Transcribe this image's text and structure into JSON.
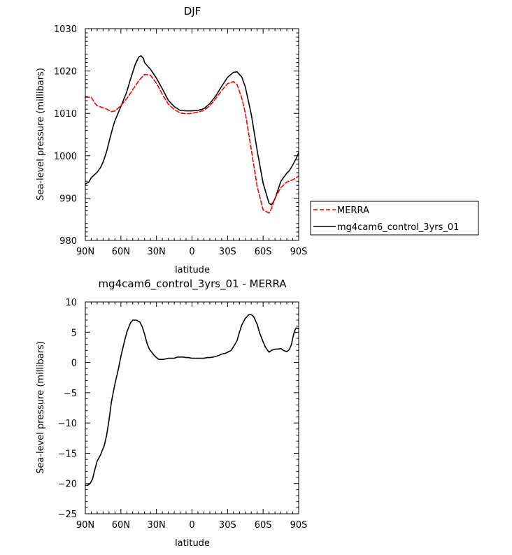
{
  "chart_data": [
    {
      "type": "line",
      "title": "DJF",
      "xlabel": "latitude",
      "ylabel": "Sea-level pressure (millibars)",
      "xlim": [
        90,
        -90
      ],
      "ylim": [
        980,
        1030
      ],
      "x_ticks": [
        90,
        60,
        30,
        0,
        -30,
        -60,
        -90
      ],
      "x_tick_labels": [
        "90N",
        "60N",
        "30N",
        "0",
        "30S",
        "60S",
        "90S"
      ],
      "y_ticks": [
        980,
        990,
        1000,
        1010,
        1020,
        1030
      ],
      "legend": {
        "placement": "right"
      },
      "series": [
        {
          "name": "MERRA",
          "color": "#ff0000",
          "dash": "dashed",
          "x": [
            90,
            85,
            82,
            80,
            77,
            72,
            68,
            65,
            60,
            55,
            50,
            45,
            40,
            35,
            30,
            25,
            20,
            15,
            10,
            5,
            0,
            -5,
            -10,
            -15,
            -20,
            -25,
            -30,
            -35,
            -38,
            -42,
            -45,
            -50,
            -55,
            -60,
            -65,
            -67,
            -70,
            -75,
            -80,
            -85,
            -90
          ],
          "y": [
            1013.8,
            1013.8,
            1012.4,
            1011.8,
            1011.5,
            1011.0,
            1010.4,
            1010.6,
            1011.8,
            1013.5,
            1015.6,
            1017.7,
            1019.2,
            1019.0,
            1017.1,
            1014.5,
            1012.2,
            1010.9,
            1010.1,
            1009.9,
            1010.0,
            1010.3,
            1010.7,
            1011.8,
            1013.5,
            1015.4,
            1017.0,
            1017.5,
            1016.8,
            1013.6,
            1010.0,
            1001.5,
            992.7,
            987.2,
            986.5,
            987.5,
            990.0,
            992.5,
            993.8,
            994.3,
            995.2
          ]
        },
        {
          "name": "mg4cam6_control_3yrs_01",
          "color": "#000000",
          "dash": "solid",
          "x": [
            90,
            87,
            85,
            82,
            80,
            77,
            75,
            72,
            70,
            67,
            65,
            60,
            55,
            52,
            48,
            45,
            43,
            41,
            40,
            37,
            35,
            30,
            25,
            20,
            15,
            10,
            5,
            0,
            -5,
            -10,
            -15,
            -20,
            -25,
            -30,
            -35,
            -38,
            -42,
            -45,
            -50,
            -55,
            -60,
            -65,
            -67,
            -70,
            -75,
            -80,
            -82,
            -85,
            -88,
            -90
          ],
          "y": [
            993.3,
            993.8,
            994.8,
            995.6,
            996.1,
            997.3,
            998.5,
            1001.0,
            1003.3,
            1006.5,
            1008.3,
            1011.6,
            1015.1,
            1018.0,
            1021.5,
            1023.3,
            1023.6,
            1023.0,
            1022.0,
            1021.0,
            1020.4,
            1018.3,
            1015.8,
            1013.1,
            1011.6,
            1010.7,
            1010.6,
            1010.6,
            1010.7,
            1011.1,
            1012.3,
            1014.1,
            1016.4,
            1018.5,
            1019.7,
            1019.8,
            1018.6,
            1016.2,
            1009.8,
            1001.2,
            993.5,
            988.8,
            988.4,
            989.8,
            994.0,
            995.9,
            996.4,
            997.8,
            999.4,
            1000.7
          ]
        }
      ]
    },
    {
      "type": "line",
      "title": "mg4cam6_control_3yrs_01 - MERRA",
      "xlabel": "latitude",
      "ylabel": "Sea-level pressure (millibars)",
      "xlim": [
        90,
        -90
      ],
      "ylim": [
        -25,
        10
      ],
      "x_ticks": [
        90,
        60,
        30,
        0,
        -30,
        -60,
        -90
      ],
      "x_tick_labels": [
        "90N",
        "60N",
        "30N",
        "0",
        "30S",
        "60S",
        "90S"
      ],
      "y_ticks": [
        -25,
        -20,
        -15,
        -10,
        -5,
        0,
        5,
        10
      ],
      "series": [
        {
          "color": "#000000",
          "dash": "solid",
          "x": [
            90,
            88,
            86,
            84,
            82,
            80,
            77,
            74,
            72,
            70,
            68,
            65,
            62,
            60,
            57,
            55,
            52,
            50,
            47,
            44,
            42,
            40,
            38,
            36,
            34,
            32,
            30,
            28,
            25,
            22,
            20,
            17,
            15,
            12,
            10,
            7,
            5,
            3,
            0,
            -3,
            -5,
            -8,
            -10,
            -13,
            -15,
            -18,
            -20,
            -23,
            -25,
            -28,
            -30,
            -33,
            -35,
            -38,
            -40,
            -42,
            -45,
            -48,
            -50,
            -52,
            -55,
            -57,
            -60,
            -62,
            -65,
            -67,
            -70,
            -72,
            -75,
            -77,
            -80,
            -82,
            -84,
            -85,
            -86,
            -87,
            -88,
            -90
          ],
          "y": [
            -20.3,
            -20.3,
            -20.0,
            -19.3,
            -17.7,
            -16.3,
            -15.2,
            -13.7,
            -12.0,
            -9.5,
            -6.5,
            -3.5,
            -1.0,
            1.0,
            3.5,
            5.0,
            6.5,
            7.0,
            7.0,
            6.7,
            5.9,
            4.7,
            3.2,
            2.2,
            1.7,
            1.2,
            0.8,
            0.5,
            0.5,
            0.6,
            0.7,
            0.7,
            0.7,
            0.9,
            0.9,
            0.9,
            0.8,
            0.8,
            0.7,
            0.7,
            0.7,
            0.7,
            0.7,
            0.8,
            0.8,
            0.9,
            1.0,
            1.2,
            1.4,
            1.5,
            1.7,
            2.0,
            2.6,
            3.6,
            5.0,
            6.2,
            7.3,
            7.9,
            7.9,
            7.6,
            6.3,
            4.9,
            3.4,
            2.5,
            1.7,
            2.0,
            2.2,
            2.2,
            2.3,
            2.0,
            1.8,
            2.1,
            3.0,
            4.0,
            4.8,
            5.4,
            5.7,
            5.6
          ]
        }
      ]
    }
  ]
}
